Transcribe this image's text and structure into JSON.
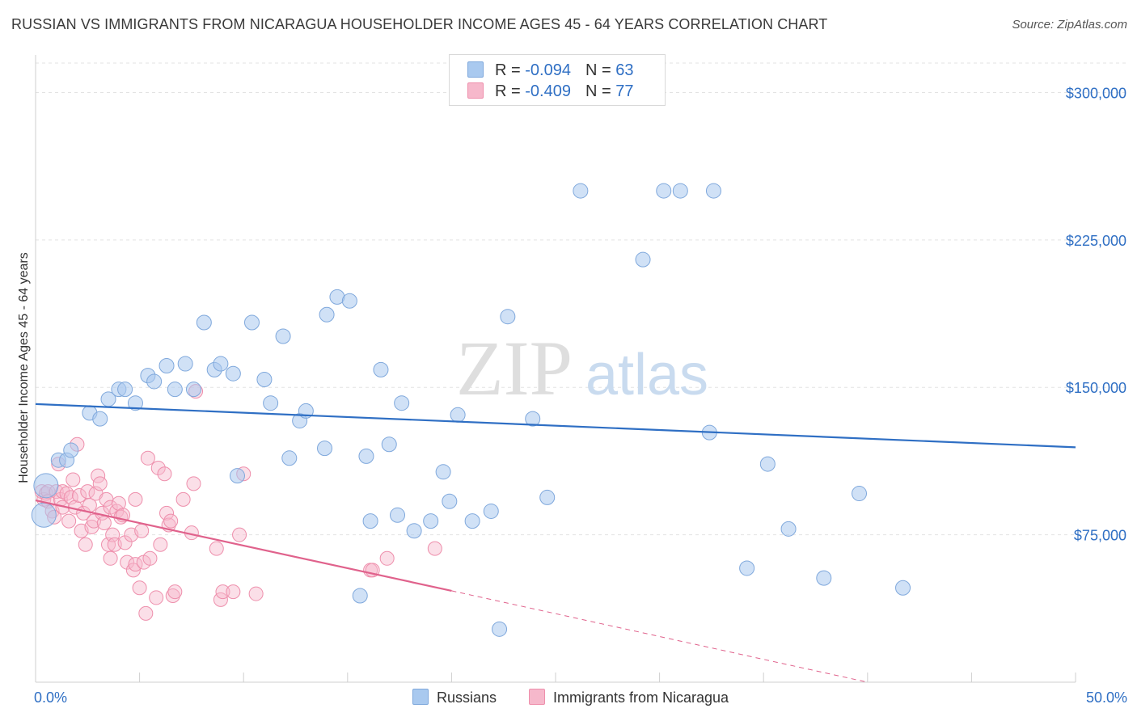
{
  "header": {
    "title": "RUSSIAN VS IMMIGRANTS FROM NICARAGUA HOUSEHOLDER INCOME AGES 45 - 64 YEARS CORRELATION CHART",
    "source": "Source: ZipAtlas.com"
  },
  "watermark": {
    "zip": "ZIP",
    "atlas": "atlas"
  },
  "legend": {
    "row1": {
      "r_label": "R = ",
      "r_value": "-0.094",
      "n_label": "N = ",
      "n_value": "63"
    },
    "row2": {
      "r_label": "R = ",
      "r_value": "-0.409",
      "n_label": "N = ",
      "n_value": "77"
    }
  },
  "chart_data": {
    "type": "scatter",
    "title": "RUSSIAN VS IMMIGRANTS FROM NICARAGUA HOUSEHOLDER INCOME AGES 45 - 64 YEARS CORRELATION CHART",
    "xlabel": "",
    "ylabel": "Householder Income Ages 45 - 64 years",
    "xlim": [
      0,
      50
    ],
    "ylim": [
      0,
      315000
    ],
    "x_tick_labels": {
      "min": "0.0%",
      "max": "50.0%"
    },
    "y_ticks": [
      {
        "value": 75000,
        "label": "$75,000"
      },
      {
        "value": 150000,
        "label": "$150,000"
      },
      {
        "value": 225000,
        "label": "$225,000"
      },
      {
        "value": 300000,
        "label": "$300,000"
      }
    ],
    "grid": true,
    "colors": {
      "russians": "#a9c9ef",
      "russians_stroke": "#7fa8dc",
      "russians_line": "#2f6fc4",
      "nicaragua": "#f6b8cb",
      "nicaragua_stroke": "#ee8fac",
      "nicaragua_line": "#e0628c",
      "axis_text": "#2f6fc4"
    },
    "series": [
      {
        "name": "Russians",
        "r": -0.094,
        "n": 63,
        "trend": {
          "x0": 0,
          "y0": 141500,
          "x1": 50,
          "y1": 119500
        },
        "points": [
          [
            0.4,
            85000
          ],
          [
            0.5,
            100000
          ],
          [
            1.1,
            113000
          ],
          [
            1.5,
            113000
          ],
          [
            1.7,
            118000
          ],
          [
            2.6,
            137000
          ],
          [
            3.1,
            134000
          ],
          [
            3.5,
            144000
          ],
          [
            4.0,
            149000
          ],
          [
            4.3,
            149000
          ],
          [
            4.8,
            142000
          ],
          [
            5.4,
            156000
          ],
          [
            5.7,
            153000
          ],
          [
            6.3,
            161000
          ],
          [
            6.7,
            149000
          ],
          [
            7.2,
            162000
          ],
          [
            7.6,
            149000
          ],
          [
            8.1,
            183000
          ],
          [
            8.6,
            159000
          ],
          [
            8.9,
            162000
          ],
          [
            9.5,
            157000
          ],
          [
            9.7,
            105000
          ],
          [
            10.4,
            183000
          ],
          [
            11.0,
            154000
          ],
          [
            11.3,
            142000
          ],
          [
            11.9,
            176000
          ],
          [
            12.2,
            114000
          ],
          [
            12.7,
            133000
          ],
          [
            13.0,
            138000
          ],
          [
            13.9,
            119000
          ],
          [
            14.0,
            187000
          ],
          [
            14.5,
            196000
          ],
          [
            15.1,
            194000
          ],
          [
            15.6,
            44000
          ],
          [
            15.9,
            115000
          ],
          [
            16.1,
            82000
          ],
          [
            16.6,
            159000
          ],
          [
            17.0,
            121000
          ],
          [
            17.4,
            85000
          ],
          [
            17.6,
            142000
          ],
          [
            18.2,
            77000
          ],
          [
            19.0,
            82000
          ],
          [
            19.6,
            107000
          ],
          [
            19.9,
            92000
          ],
          [
            20.3,
            136000
          ],
          [
            21.0,
            82000
          ],
          [
            21.9,
            87000
          ],
          [
            22.3,
            27000
          ],
          [
            22.7,
            186000
          ],
          [
            23.9,
            134000
          ],
          [
            24.6,
            94000
          ],
          [
            26.2,
            250000
          ],
          [
            29.2,
            215000
          ],
          [
            30.2,
            250000
          ],
          [
            31.0,
            250000
          ],
          [
            32.4,
            127000
          ],
          [
            32.6,
            250000
          ],
          [
            34.2,
            58000
          ],
          [
            35.2,
            111000
          ],
          [
            36.2,
            78000
          ],
          [
            37.9,
            53000
          ],
          [
            39.6,
            96000
          ],
          [
            41.7,
            48000
          ]
        ]
      },
      {
        "name": "Immigrants from Nicaragua",
        "r": -0.409,
        "n": 77,
        "trend": {
          "x0": 0,
          "y0": 92500,
          "x1": 20,
          "y1": 46500
        },
        "trend_dashed": {
          "x0": 20,
          "y0": 46500,
          "x1": 40,
          "y1": 0
        },
        "points": [
          [
            0.3,
            97000
          ],
          [
            0.4,
            93000
          ],
          [
            0.5,
            96000
          ],
          [
            0.6,
            97000
          ],
          [
            0.6,
            92000
          ],
          [
            0.8,
            87000
          ],
          [
            0.9,
            84000
          ],
          [
            1.0,
            97000
          ],
          [
            1.1,
            111000
          ],
          [
            1.2,
            93000
          ],
          [
            1.3,
            97000
          ],
          [
            1.3,
            89000
          ],
          [
            1.5,
            96000
          ],
          [
            1.6,
            82000
          ],
          [
            1.7,
            94000
          ],
          [
            1.8,
            103000
          ],
          [
            1.9,
            89000
          ],
          [
            2.0,
            121000
          ],
          [
            2.1,
            95000
          ],
          [
            2.2,
            77000
          ],
          [
            2.3,
            86000
          ],
          [
            2.4,
            70000
          ],
          [
            2.5,
            97000
          ],
          [
            2.6,
            90000
          ],
          [
            2.7,
            79000
          ],
          [
            2.8,
            82000
          ],
          [
            2.9,
            96000
          ],
          [
            3.0,
            105000
          ],
          [
            3.1,
            101000
          ],
          [
            3.2,
            86000
          ],
          [
            3.3,
            81000
          ],
          [
            3.4,
            93000
          ],
          [
            3.5,
            70000
          ],
          [
            3.6,
            63000
          ],
          [
            3.6,
            89000
          ],
          [
            3.7,
            75000
          ],
          [
            3.8,
            70000
          ],
          [
            3.9,
            87000
          ],
          [
            4.0,
            91000
          ],
          [
            4.1,
            84000
          ],
          [
            4.2,
            85000
          ],
          [
            4.3,
            71000
          ],
          [
            4.4,
            61000
          ],
          [
            4.6,
            75000
          ],
          [
            4.7,
            57000
          ],
          [
            4.8,
            93000
          ],
          [
            4.8,
            60000
          ],
          [
            5.0,
            48000
          ],
          [
            5.1,
            77000
          ],
          [
            5.2,
            61000
          ],
          [
            5.3,
            35000
          ],
          [
            5.4,
            114000
          ],
          [
            5.5,
            63000
          ],
          [
            5.8,
            43000
          ],
          [
            5.9,
            109000
          ],
          [
            6.0,
            70000
          ],
          [
            6.2,
            106000
          ],
          [
            6.3,
            86000
          ],
          [
            6.4,
            80000
          ],
          [
            6.5,
            82000
          ],
          [
            6.6,
            44000
          ],
          [
            6.7,
            46000
          ],
          [
            7.1,
            93000
          ],
          [
            7.5,
            76000
          ],
          [
            7.6,
            101000
          ],
          [
            7.7,
            148000
          ],
          [
            8.7,
            68000
          ],
          [
            8.9,
            42000
          ],
          [
            9.0,
            46000
          ],
          [
            9.5,
            46000
          ],
          [
            9.8,
            75000
          ],
          [
            10.0,
            106000
          ],
          [
            10.6,
            45000
          ],
          [
            16.1,
            57000
          ],
          [
            16.2,
            57000
          ],
          [
            16.9,
            63000
          ],
          [
            19.2,
            68000
          ]
        ]
      }
    ]
  },
  "bottom_legend": {
    "series1": "Russians",
    "series2": "Immigrants from Nicaragua"
  }
}
